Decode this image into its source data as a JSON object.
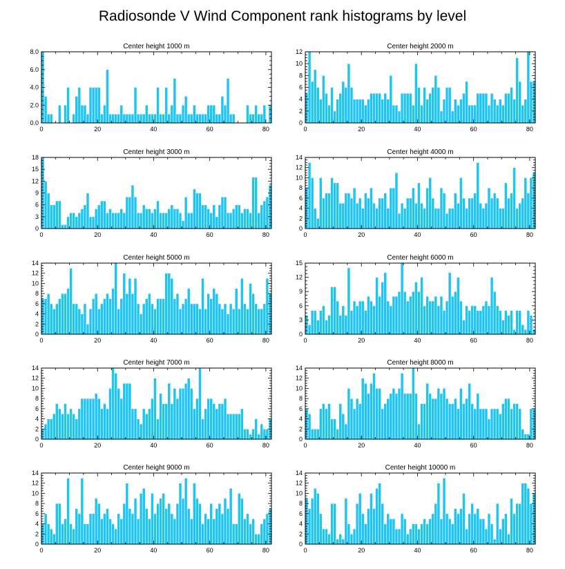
{
  "figure_title": "Radiosonde V Wind Component rank histograms by level",
  "colors": {
    "bar": "#1ec4f2",
    "bar_edge": "#ffffff",
    "axis": "#000000"
  },
  "chart_data": [
    {
      "type": "bar",
      "title": "Center height 1000 m",
      "xlim": [
        0,
        82
      ],
      "ylim": [
        0,
        8
      ],
      "yticks": [
        0,
        2,
        4,
        6,
        8
      ],
      "yticklabels": [
        "0.0",
        "2.0",
        "4.0",
        "6.0",
        "8.0"
      ],
      "xticks": [
        0,
        20,
        40,
        60,
        80
      ],
      "xticklabels": [
        "0",
        "20",
        "40",
        "60",
        "80"
      ],
      "values": [
        8,
        3,
        1,
        1,
        0,
        0,
        2,
        0,
        2,
        4,
        0,
        1,
        3,
        4,
        2,
        2,
        1,
        4,
        4,
        4,
        4,
        1,
        2,
        6,
        1,
        1,
        1,
        1,
        2,
        1,
        1,
        1,
        1,
        4,
        1,
        1,
        1,
        2,
        1,
        1,
        1,
        4,
        1,
        1,
        4,
        1,
        2,
        5,
        1,
        1,
        2,
        3,
        1,
        1,
        2,
        1,
        1,
        1,
        1,
        2,
        2,
        2,
        1,
        1,
        3,
        2,
        5,
        1,
        1,
        0,
        0,
        0,
        0,
        2,
        1,
        1,
        2,
        1,
        1,
        2,
        0,
        2
      ]
    },
    {
      "type": "bar",
      "title": "Center height 2000 m",
      "xlim": [
        0,
        82
      ],
      "ylim": [
        0,
        12
      ],
      "yticks": [
        0,
        2,
        4,
        6,
        8,
        10,
        12
      ],
      "yticklabels": [
        "0",
        "2",
        "4",
        "6",
        "8",
        "10",
        "12"
      ],
      "xticks": [
        0,
        20,
        40,
        60,
        80
      ],
      "xticklabels": [
        "0",
        "20",
        "40",
        "60",
        "80"
      ],
      "values": [
        5,
        12,
        7,
        9,
        6,
        4,
        8,
        5,
        3,
        6,
        2,
        4,
        5,
        7,
        6,
        10,
        6,
        4,
        4,
        4,
        4,
        3,
        4,
        5,
        5,
        5,
        5,
        4,
        5,
        4,
        8,
        3,
        3,
        2,
        5,
        5,
        5,
        5,
        3,
        10,
        6,
        3,
        6,
        4,
        5,
        6,
        8,
        6,
        2,
        4,
        6,
        6,
        2,
        4,
        3,
        4,
        5,
        7,
        3,
        3,
        3,
        5,
        5,
        5,
        5,
        3,
        5,
        4,
        3,
        4,
        3,
        5,
        5,
        6,
        4,
        11,
        7,
        3,
        4,
        12,
        7,
        7,
        4
      ]
    },
    {
      "type": "bar",
      "title": "Center height 3000 m",
      "xlim": [
        0,
        82
      ],
      "ylim": [
        0,
        18
      ],
      "yticks": [
        0,
        3,
        6,
        9,
        12,
        15,
        18
      ],
      "yticklabels": [
        "0",
        "3",
        "6",
        "9",
        "12",
        "15",
        "18"
      ],
      "xticks": [
        0,
        20,
        40,
        60,
        80
      ],
      "xticklabels": [
        "0",
        "20",
        "40",
        "60",
        "80"
      ],
      "values": [
        18,
        12,
        9,
        6,
        6,
        7,
        7,
        1,
        1,
        3,
        4,
        4,
        3,
        4,
        5,
        6,
        9,
        3,
        3,
        5,
        6,
        7,
        7,
        4,
        5,
        4,
        4,
        4,
        5,
        4,
        8,
        8,
        11,
        8,
        4,
        4,
        6,
        5,
        5,
        4,
        5,
        7,
        4,
        4,
        4,
        5,
        6,
        5,
        5,
        4,
        2,
        8,
        4,
        4,
        10,
        9,
        9,
        6,
        6,
        5,
        4,
        6,
        3,
        6,
        8,
        8,
        4,
        4,
        5,
        6,
        6,
        4,
        5,
        5,
        4,
        13,
        13,
        4,
        6,
        7,
        8,
        11
      ]
    },
    {
      "type": "bar",
      "title": "Center height 4000 m",
      "xlim": [
        0,
        82
      ],
      "ylim": [
        0,
        14
      ],
      "yticks": [
        0,
        2,
        4,
        6,
        8,
        10,
        12,
        14
      ],
      "yticklabels": [
        "0",
        "2",
        "4",
        "6",
        "8",
        "10",
        "12",
        "14"
      ],
      "xticks": [
        0,
        20,
        40,
        60,
        80
      ],
      "xticklabels": [
        "0",
        "20",
        "40",
        "60",
        "80"
      ],
      "values": [
        8,
        13,
        10,
        4,
        2,
        10,
        6,
        7,
        7,
        10,
        9,
        9,
        5,
        5,
        7,
        7,
        6,
        8,
        5,
        6,
        4,
        7,
        6,
        8,
        5,
        4,
        6,
        6,
        7,
        4,
        8,
        8,
        11,
        3,
        5,
        4,
        6,
        6,
        8,
        5,
        9,
        5,
        4,
        8,
        10,
        6,
        4,
        4,
        8,
        7,
        3,
        4,
        4,
        7,
        5,
        10,
        6,
        4,
        6,
        6,
        7,
        13,
        5,
        4,
        5,
        8,
        6,
        7,
        6,
        4,
        4,
        9,
        6,
        7,
        12,
        4,
        5,
        6,
        10,
        7,
        10,
        11
      ]
    },
    {
      "type": "bar",
      "title": "Center height 5000 m",
      "xlim": [
        0,
        82
      ],
      "ylim": [
        0,
        14
      ],
      "yticks": [
        0,
        2,
        4,
        6,
        8,
        10,
        12,
        14
      ],
      "yticklabels": [
        "0",
        "2",
        "4",
        "6",
        "8",
        "10",
        "12",
        "14"
      ],
      "xticks": [
        0,
        20,
        40,
        60,
        80
      ],
      "xticklabels": [
        "0",
        "20",
        "40",
        "60",
        "80"
      ],
      "values": [
        7,
        7,
        8,
        6,
        5,
        6,
        7,
        8,
        8,
        9,
        13,
        6,
        6,
        5,
        4,
        6,
        2,
        5,
        7,
        8,
        5,
        6,
        7,
        8,
        7,
        9,
        14,
        5,
        7,
        12,
        8,
        11,
        8,
        11,
        6,
        4,
        6,
        7,
        8,
        6,
        5,
        7,
        7,
        7,
        12,
        12,
        11,
        7,
        8,
        5,
        6,
        7,
        9,
        6,
        6,
        6,
        5,
        11,
        5,
        8,
        7,
        9,
        8,
        6,
        5,
        6,
        4,
        6,
        5,
        9,
        5,
        11,
        6,
        5,
        10,
        8,
        6,
        5,
        5,
        6,
        11,
        8
      ]
    },
    {
      "type": "bar",
      "title": "Center height 6000 m",
      "xlim": [
        0,
        82
      ],
      "ylim": [
        0,
        15
      ],
      "yticks": [
        0,
        3,
        6,
        9,
        12,
        15
      ],
      "yticklabels": [
        "0",
        "3",
        "6",
        "9",
        "12",
        "15"
      ],
      "xticks": [
        0,
        20,
        40,
        60,
        80
      ],
      "xticklabels": [
        "0",
        "20",
        "40",
        "60",
        "80"
      ],
      "values": [
        4,
        2,
        5,
        5,
        3,
        5,
        6,
        3,
        4,
        10,
        10,
        7,
        4,
        6,
        4,
        14,
        5,
        7,
        6,
        7,
        7,
        5,
        8,
        7,
        6,
        12,
        8,
        11,
        13,
        7,
        6,
        8,
        8,
        9,
        15,
        9,
        7,
        8,
        9,
        11,
        9,
        12,
        6,
        8,
        7,
        7,
        8,
        6,
        8,
        5,
        7,
        13,
        8,
        9,
        12,
        7,
        3,
        6,
        5,
        6,
        6,
        5,
        5,
        6,
        7,
        6,
        12,
        9,
        6,
        5,
        3,
        5,
        4,
        5,
        1,
        5,
        5,
        2,
        1,
        5,
        4,
        1,
        4
      ]
    },
    {
      "type": "bar",
      "title": "Center height 7000 m",
      "xlim": [
        0,
        82
      ],
      "ylim": [
        0,
        14
      ],
      "yticks": [
        0,
        2,
        4,
        6,
        8,
        10,
        12,
        14
      ],
      "yticklabels": [
        "0",
        "2",
        "4",
        "6",
        "8",
        "10",
        "12",
        "14"
      ],
      "xticks": [
        0,
        20,
        40,
        60,
        80
      ],
      "xticklabels": [
        "0",
        "20",
        "40",
        "60",
        "80"
      ],
      "values": [
        2,
        3,
        4,
        4,
        5,
        7,
        6,
        5,
        7,
        5,
        6,
        5,
        4,
        6,
        8,
        8,
        8,
        8,
        8,
        9,
        8,
        6,
        7,
        6,
        10,
        14,
        13,
        10,
        8,
        11,
        11,
        11,
        6,
        6,
        4,
        3,
        6,
        5,
        6,
        8,
        12,
        4,
        9,
        7,
        7,
        11,
        7,
        10,
        8,
        10,
        10,
        11,
        12,
        10,
        6,
        8,
        14,
        4,
        6,
        8,
        8,
        7,
        6,
        7,
        7,
        8,
        5,
        5,
        5,
        5,
        5,
        6,
        2,
        2,
        1,
        2,
        4,
        1,
        3,
        2,
        2,
        4
      ]
    },
    {
      "type": "bar",
      "title": "Center height 8000 m",
      "xlim": [
        0,
        82
      ],
      "ylim": [
        0,
        14
      ],
      "yticks": [
        0,
        2,
        4,
        6,
        8,
        10,
        12,
        14
      ],
      "yticklabels": [
        "0",
        "2",
        "4",
        "6",
        "8",
        "10",
        "12",
        "14"
      ],
      "xticks": [
        0,
        20,
        40,
        60,
        80
      ],
      "xticklabels": [
        "0",
        "20",
        "40",
        "60",
        "80"
      ],
      "values": [
        6,
        5,
        2,
        2,
        2,
        6,
        7,
        6,
        7,
        4,
        4,
        2,
        7,
        5,
        3,
        10,
        8,
        6,
        8,
        7,
        12,
        11,
        9,
        11,
        13,
        10,
        10,
        6,
        7,
        8,
        9,
        10,
        9,
        10,
        13,
        9,
        9,
        9,
        14,
        9,
        3,
        7,
        7,
        11,
        9,
        8,
        8,
        10,
        9,
        10,
        8,
        7,
        7,
        8,
        6,
        10,
        7,
        8,
        11,
        7,
        6,
        9,
        6,
        6,
        6,
        4,
        6,
        6,
        6,
        5,
        7,
        8,
        8,
        6,
        7,
        7,
        6,
        2,
        1,
        1,
        6,
        6
      ]
    },
    {
      "type": "bar",
      "title": "Center height 9000 m",
      "xlim": [
        0,
        82
      ],
      "ylim": [
        0,
        14
      ],
      "yticks": [
        0,
        2,
        4,
        6,
        8,
        10,
        12,
        14
      ],
      "yticklabels": [
        "0",
        "2",
        "4",
        "6",
        "8",
        "10",
        "12",
        "14"
      ],
      "xticks": [
        0,
        20,
        40,
        60,
        80
      ],
      "xticklabels": [
        "0",
        "20",
        "40",
        "60",
        "80"
      ],
      "values": [
        4,
        6,
        4,
        3,
        2,
        8,
        8,
        4,
        5,
        13,
        4,
        3,
        7,
        6,
        13,
        4,
        4,
        6,
        6,
        9,
        8,
        5,
        6,
        7,
        5,
        4,
        3,
        6,
        5,
        8,
        12,
        7,
        6,
        9,
        5,
        10,
        11,
        7,
        5,
        10,
        6,
        8,
        9,
        10,
        7,
        8,
        6,
        5,
        8,
        12,
        9,
        13,
        7,
        5,
        12,
        9,
        8,
        4,
        6,
        5,
        8,
        5,
        7,
        8,
        6,
        9,
        7,
        11,
        4,
        4,
        10,
        9,
        5,
        6,
        4,
        5,
        2,
        2,
        4,
        5,
        6,
        7,
        8
      ]
    },
    {
      "type": "bar",
      "title": "Center height 10000 m",
      "xlim": [
        0,
        82
      ],
      "ylim": [
        0,
        14
      ],
      "yticks": [
        0,
        2,
        4,
        6,
        8,
        10,
        12,
        14
      ],
      "yticklabels": [
        "0",
        "2",
        "4",
        "6",
        "8",
        "10",
        "12",
        "14"
      ],
      "xticks": [
        0,
        20,
        40,
        60,
        80
      ],
      "xticklabels": [
        "0",
        "20",
        "40",
        "60",
        "80"
      ],
      "values": [
        9,
        7,
        9,
        11,
        10,
        6,
        3,
        3,
        2,
        8,
        8,
        1,
        2,
        1,
        9,
        4,
        2,
        3,
        8,
        10,
        6,
        4,
        7,
        10,
        7,
        11,
        12,
        8,
        4,
        6,
        5,
        5,
        3,
        3,
        6,
        5,
        2,
        3,
        4,
        4,
        3,
        4,
        5,
        4,
        5,
        6,
        8,
        12,
        5,
        13,
        6,
        5,
        4,
        7,
        6,
        7,
        10,
        3,
        6,
        8,
        6,
        7,
        5,
        5,
        3,
        6,
        4,
        1,
        8,
        3,
        5,
        6,
        2,
        9,
        6,
        8,
        8,
        12,
        12,
        11,
        8,
        10,
        6,
        10
      ]
    }
  ]
}
